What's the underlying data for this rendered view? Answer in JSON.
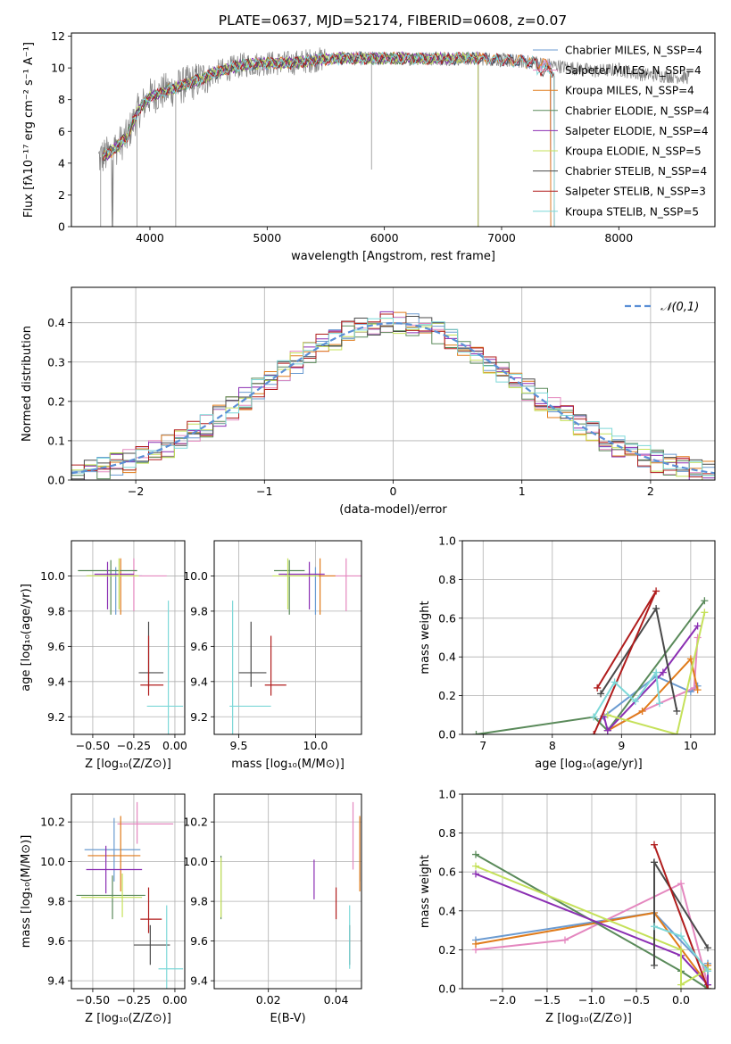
{
  "figure": {
    "title": "PLATE=0637, MJD=52174, FIBERID=0608, z=0.07",
    "colors": {
      "Chabrier MILES": "#6b9bd1",
      "Salpeter MILES": "#e487bf",
      "Kroupa MILES": "#e07b1a",
      "Chabrier ELODIE": "#5a8a5a",
      "Salpeter ELODIE": "#8b2fb3",
      "Kroupa ELODIE": "#c5e15a",
      "Chabrier STELIB": "#4a4a4a",
      "Salpeter STELIB": "#b01c1c",
      "Kroupa STELIB": "#7dd8d8",
      "data": "#808080"
    }
  },
  "chart_data": [
    {
      "type": "line",
      "xlabel": "wavelength [Angstrom, rest frame]",
      "ylabel": "Flux [fλ10⁻¹⁷ erg cm⁻² s⁻¹ A⁻¹]",
      "xlim": [
        3330,
        8820
      ],
      "ylim": [
        0,
        12.2
      ],
      "xticks": [
        4000,
        5000,
        6000,
        7000,
        8000
      ],
      "yticks": [
        0,
        2,
        4,
        6,
        8,
        10,
        12
      ],
      "legend_loc": "right",
      "legend": [
        {
          "label": "Chabrier MILES, N_SSP=4",
          "model": "Chabrier MILES"
        },
        {
          "label": "Salpeter MILES, N_SSP=4",
          "model": "Salpeter MILES"
        },
        {
          "label": "Kroupa MILES, N_SSP=4",
          "model": "Kroupa MILES"
        },
        {
          "label": "Chabrier ELODIE, N_SSP=4",
          "model": "Chabrier ELODIE"
        },
        {
          "label": "Salpeter ELODIE, N_SSP=4",
          "model": "Salpeter ELODIE"
        },
        {
          "label": "Kroupa ELODIE, N_SSP=5",
          "model": "Kroupa ELODIE"
        },
        {
          "label": "Chabrier STELIB, N_SSP=4",
          "model": "Chabrier STELIB"
        },
        {
          "label": "Salpeter STELIB, N_SSP=3",
          "model": "Salpeter STELIB"
        },
        {
          "label": "Kroupa STELIB, N_SSP=5",
          "model": "Kroupa STELIB"
        }
      ],
      "continuum": [
        [
          3560,
          4.3
        ],
        [
          3650,
          4.6
        ],
        [
          3800,
          5.6
        ],
        [
          3900,
          7.3
        ],
        [
          4000,
          8.2
        ],
        [
          4200,
          8.7
        ],
        [
          4400,
          9.2
        ],
        [
          4600,
          9.8
        ],
        [
          4800,
          10.2
        ],
        [
          5000,
          10.3
        ],
        [
          5200,
          10.3
        ],
        [
          5400,
          10.5
        ],
        [
          5600,
          10.6
        ],
        [
          5800,
          10.6
        ],
        [
          6000,
          10.6
        ],
        [
          6200,
          10.6
        ],
        [
          6400,
          10.6
        ],
        [
          6600,
          10.6
        ],
        [
          6800,
          10.6
        ],
        [
          7000,
          10.5
        ],
        [
          7200,
          10.4
        ],
        [
          7400,
          10.2
        ],
        [
          7600,
          10.0
        ],
        [
          7800,
          9.8
        ],
        [
          8000,
          9.9
        ],
        [
          8200,
          9.6
        ],
        [
          8400,
          9.5
        ],
        [
          8600,
          9.4
        ]
      ],
      "dips": [
        [
          3580,
          0
        ],
        [
          3890,
          0
        ],
        [
          4220,
          0
        ],
        [
          5890,
          3.6
        ],
        [
          6800,
          0
        ],
        [
          7420,
          0
        ]
      ],
      "model_ranges": {
        "STELIB": [
          3600,
          7450
        ],
        "MILES": [
          3600,
          7420
        ],
        "ELODIE": [
          3600,
          6800
        ]
      }
    },
    {
      "type": "step",
      "xlabel": "(data-model)/error",
      "ylabel": "Normed distribution",
      "xlim": [
        -2.5,
        2.5
      ],
      "ylim": [
        0,
        0.49
      ],
      "xticks": [
        -2,
        -1,
        0,
        1,
        2
      ],
      "yticks": [
        0,
        0.1,
        0.2,
        0.3,
        0.4
      ],
      "legend_loc": "top-right",
      "legend_label": "𝒩(0,1)",
      "bin_width": 0.1
    },
    {
      "type": "errorbar",
      "xlabel": "Z [log₁₀(Z/Z⊙)]",
      "ylabel": "age  [log₁₀(age/yr)]",
      "xlim": [
        -0.63,
        0.06
      ],
      "ylim": [
        9.1,
        10.2
      ],
      "xticks": [
        -0.5,
        -0.25,
        0.0
      ],
      "xticklabels": [
        "−0.50",
        "−0.25",
        "0.00"
      ],
      "yticks": [
        9.2,
        9.4,
        9.6,
        9.8,
        10.0
      ],
      "points": [
        {
          "model": "Chabrier MILES",
          "x": -0.36,
          "xerr": [
            0.18,
            0.16
          ],
          "y": 10.0,
          "yerr": [
            0.22,
            0.05
          ]
        },
        {
          "model": "Salpeter MILES",
          "x": -0.25,
          "xerr": [
            0.1,
            0.2
          ],
          "y": 10.0,
          "yerr": [
            0.2,
            0.1
          ]
        },
        {
          "model": "Kroupa MILES",
          "x": -0.33,
          "xerr": [
            0.2,
            0.1
          ],
          "y": 10.0,
          "yerr": [
            0.22,
            0.1
          ]
        },
        {
          "model": "Chabrier ELODIE",
          "x": -0.39,
          "xerr": [
            0.2,
            0.16
          ],
          "y": 10.03,
          "yerr": [
            0.25,
            0.06
          ]
        },
        {
          "model": "Salpeter ELODIE",
          "x": -0.41,
          "xerr": [
            0.08,
            0.16
          ],
          "y": 10.01,
          "yerr": [
            0.2,
            0.07
          ]
        },
        {
          "model": "Kroupa ELODIE",
          "x": -0.34,
          "xerr": [
            0.2,
            0.12
          ],
          "y": 10.0,
          "yerr": [
            0.19,
            0.1
          ]
        },
        {
          "model": "Chabrier STELIB",
          "x": -0.16,
          "xerr": [
            0.06,
            0.09
          ],
          "y": 9.45,
          "yerr": [
            0.08,
            0.29
          ]
        },
        {
          "model": "Salpeter STELIB",
          "x": -0.16,
          "xerr": [
            0.05,
            0.09
          ],
          "y": 9.38,
          "yerr": [
            0.06,
            0.28
          ]
        },
        {
          "model": "Kroupa STELIB",
          "x": -0.04,
          "xerr": [
            0.13,
            0.09
          ],
          "y": 9.26,
          "yerr": [
            0.17,
            0.6
          ]
        }
      ]
    },
    {
      "type": "errorbar",
      "xlabel": "mass [log₁₀(M/M⊙)]",
      "ylabel": "",
      "xlim": [
        9.34,
        10.3
      ],
      "ylim": [
        9.1,
        10.2
      ],
      "xticks": [
        9.5,
        10.0
      ],
      "xticklabels": [
        "9.5",
        "10.0"
      ],
      "yticks": [
        9.2,
        9.4,
        9.6,
        9.8,
        10.0
      ],
      "points": [
        {
          "model": "Chabrier MILES",
          "x": 10.0,
          "xerr": [
            0.2,
            0.05
          ],
          "y": 10.0,
          "yerr": [
            0.22,
            0.05
          ]
        },
        {
          "model": "Salpeter MILES",
          "x": 10.2,
          "xerr": [
            0.15,
            0.1
          ],
          "y": 10.0,
          "yerr": [
            0.2,
            0.1
          ]
        },
        {
          "model": "Kroupa MILES",
          "x": 10.03,
          "xerr": [
            0.2,
            0.1
          ],
          "y": 10.0,
          "yerr": [
            0.22,
            0.1
          ]
        },
        {
          "model": "Chabrier ELODIE",
          "x": 9.83,
          "xerr": [
            0.1,
            0.1
          ],
          "y": 10.03,
          "yerr": [
            0.25,
            0.06
          ]
        },
        {
          "model": "Salpeter ELODIE",
          "x": 9.96,
          "xerr": [
            0.2,
            0.1
          ],
          "y": 10.01,
          "yerr": [
            0.2,
            0.07
          ]
        },
        {
          "model": "Kroupa ELODIE",
          "x": 9.82,
          "xerr": [
            0.1,
            0.2
          ],
          "y": 10.0,
          "yerr": [
            0.19,
            0.1
          ]
        },
        {
          "model": "Chabrier STELIB",
          "x": 9.58,
          "xerr": [
            0.08,
            0.1
          ],
          "y": 9.45,
          "yerr": [
            0.08,
            0.29
          ]
        },
        {
          "model": "Salpeter STELIB",
          "x": 9.71,
          "xerr": [
            0.04,
            0.1
          ],
          "y": 9.38,
          "yerr": [
            0.06,
            0.28
          ]
        },
        {
          "model": "Kroupa STELIB",
          "x": 9.46,
          "xerr": [
            0.02,
            0.25
          ],
          "y": 9.26,
          "yerr": [
            0.17,
            0.6
          ]
        }
      ]
    },
    {
      "type": "line",
      "xlabel": "age  [log₁₀(age/yr)]",
      "ylabel": "mass weight",
      "xlim": [
        6.7,
        10.35
      ],
      "ylim": [
        0,
        1.0
      ],
      "xticks": [
        7,
        8,
        9,
        10
      ],
      "yticks": [
        0,
        0.2,
        0.4,
        0.6,
        0.8,
        1.0
      ],
      "series": [
        {
          "model": "Chabrier MILES",
          "x": [
            8.7,
            9.5,
            10.0,
            10.1
          ],
          "y": [
            0.08,
            0.3,
            0.22,
            0.25
          ]
        },
        {
          "model": "Salpeter MILES",
          "x": [
            8.8,
            9.3,
            10.05,
            10.1
          ],
          "y": [
            0.02,
            0.12,
            0.24,
            0.5
          ]
        },
        {
          "model": "Kroupa MILES",
          "x": [
            8.8,
            9.3,
            10.0,
            10.1
          ],
          "y": [
            0.02,
            0.12,
            0.39,
            0.23
          ]
        },
        {
          "model": "Chabrier ELODIE",
          "x": [
            6.9,
            8.6,
            8.8,
            10.2
          ],
          "y": [
            0.0,
            0.09,
            0.02,
            0.69
          ]
        },
        {
          "model": "Salpeter ELODIE",
          "x": [
            8.75,
            8.8,
            9.6,
            10.1
          ],
          "y": [
            0.09,
            0.02,
            0.32,
            0.56
          ]
        },
        {
          "model": "Kroupa ELODIE",
          "x": [
            8.8,
            9.8,
            10.2
          ],
          "y": [
            0.1,
            0.0,
            0.63
          ]
        },
        {
          "model": "Chabrier STELIB",
          "x": [
            8.7,
            9.5,
            9.8
          ],
          "y": [
            0.21,
            0.65,
            0.12
          ]
        },
        {
          "model": "Salpeter STELIB",
          "x": [
            8.6,
            9.5,
            8.65
          ],
          "y": [
            0.0,
            0.74,
            0.24
          ]
        },
        {
          "model": "Kroupa STELIB",
          "x": [
            8.6,
            8.9,
            9.2,
            9.5,
            9.55
          ],
          "y": [
            0.09,
            0.27,
            0.17,
            0.32,
            0.16
          ]
        }
      ]
    },
    {
      "type": "errorbar",
      "xlabel": "Z [log₁₀(Z/Z⊙)]",
      "ylabel": "mass [log₁₀(M/M⊙)]",
      "xlim": [
        -0.63,
        0.06
      ],
      "ylim": [
        9.36,
        10.34
      ],
      "xticks": [
        -0.5,
        -0.25,
        0.0
      ],
      "xticklabels": [
        "−0.50",
        "−0.25",
        "0.00"
      ],
      "yticks": [
        9.4,
        9.6,
        9.8,
        10.0,
        10.2
      ],
      "points": [
        {
          "model": "Chabrier MILES",
          "x": -0.37,
          "xerr": [
            0.18,
            0.16
          ],
          "y": 10.06,
          "yerr": [
            0.16,
            0.16
          ]
        },
        {
          "model": "Salpeter MILES",
          "x": -0.23,
          "xerr": [
            0.12,
            0.22
          ],
          "y": 10.19,
          "yerr": [
            0.1,
            0.11
          ]
        },
        {
          "model": "Kroupa MILES",
          "x": -0.33,
          "xerr": [
            0.2,
            0.12
          ],
          "y": 10.03,
          "yerr": [
            0.18,
            0.2
          ]
        },
        {
          "model": "Chabrier ELODIE",
          "x": -0.38,
          "xerr": [
            0.22,
            0.2
          ],
          "y": 9.83,
          "yerr": [
            0.12,
            0.1
          ]
        },
        {
          "model": "Salpeter ELODIE",
          "x": -0.42,
          "xerr": [
            0.12,
            0.22
          ],
          "y": 9.96,
          "yerr": [
            0.12,
            0.12
          ]
        },
        {
          "model": "Kroupa ELODIE",
          "x": -0.32,
          "xerr": [
            0.25,
            0.12
          ],
          "y": 9.82,
          "yerr": [
            0.1,
            0.12
          ]
        },
        {
          "model": "Chabrier STELIB",
          "x": -0.15,
          "xerr": [
            0.1,
            0.12
          ],
          "y": 9.58,
          "yerr": [
            0.1,
            0.1
          ]
        },
        {
          "model": "Salpeter STELIB",
          "x": -0.16,
          "xerr": [
            0.05,
            0.08
          ],
          "y": 9.71,
          "yerr": [
            0.07,
            0.16
          ]
        },
        {
          "model": "Kroupa STELIB",
          "x": -0.05,
          "xerr": [
            0.05,
            0.1
          ],
          "y": 9.46,
          "yerr": [
            0.1,
            0.32
          ]
        }
      ]
    },
    {
      "type": "errorbar",
      "xlabel": "E(B-V)",
      "ylabel": "",
      "xlim": [
        0.004,
        0.0475
      ],
      "ylim": [
        9.36,
        10.34
      ],
      "xticks": [
        0.02,
        0.04
      ],
      "xticklabels": [
        "0.02",
        "0.04"
      ],
      "yticks": [
        9.4,
        9.6,
        9.8,
        10.0,
        10.2
      ],
      "points": [
        {
          "model": "Chabrier MILES",
          "x": 0.047,
          "xerr": [
            0,
            0
          ],
          "y": 10.06,
          "yerr": [
            0.16,
            0.16
          ]
        },
        {
          "model": "Salpeter MILES",
          "x": 0.045,
          "xerr": [
            0,
            0
          ],
          "y": 10.19,
          "yerr": [
            0.23,
            0.11
          ]
        },
        {
          "model": "Kroupa MILES",
          "x": 0.047,
          "xerr": [
            0,
            0
          ],
          "y": 10.03,
          "yerr": [
            0.18,
            0.2
          ]
        },
        {
          "model": "Chabrier ELODIE",
          "x": 0.006,
          "xerr": [
            0,
            0
          ],
          "y": 9.83,
          "yerr": [
            0.12,
            0.2
          ]
        },
        {
          "model": "Salpeter ELODIE",
          "x": 0.0335,
          "xerr": [
            0,
            0
          ],
          "y": 9.96,
          "yerr": [
            0.15,
            0.05
          ]
        },
        {
          "model": "Kroupa ELODIE",
          "x": 0.006,
          "xerr": [
            0,
            0
          ],
          "y": 9.82,
          "yerr": [
            0.1,
            0.2
          ]
        },
        {
          "model": "Chabrier STELIB",
          "x": 0.044,
          "xerr": [
            0,
            0
          ],
          "y": 9.58,
          "yerr": [
            0.1,
            0.1
          ]
        },
        {
          "model": "Salpeter STELIB",
          "x": 0.04,
          "xerr": [
            0,
            0
          ],
          "y": 9.71,
          "yerr": [
            0.0,
            0.16
          ]
        },
        {
          "model": "Kroupa STELIB",
          "x": 0.044,
          "xerr": [
            0,
            0
          ],
          "y": 9.46,
          "yerr": [
            0.0,
            0.32
          ]
        }
      ]
    },
    {
      "type": "line",
      "xlabel": "Z [log₁₀(Z/Z⊙)]",
      "ylabel": "mass weight",
      "xlim": [
        -2.45,
        0.38
      ],
      "ylim": [
        0,
        1.0
      ],
      "xticks": [
        -2.0,
        -1.5,
        -1.0,
        -0.5,
        0.0
      ],
      "xticklabels": [
        "−2.0",
        "−1.5",
        "−1.0",
        "−0.5",
        "0.0"
      ],
      "yticks": [
        0,
        0.2,
        0.4,
        0.6,
        0.8,
        1.0
      ],
      "series": [
        {
          "model": "Chabrier MILES",
          "x": [
            -2.3,
            -0.3,
            0.3,
            0.3
          ],
          "y": [
            0.25,
            0.39,
            0.1,
            0.13
          ]
        },
        {
          "model": "Salpeter MILES",
          "x": [
            -2.3,
            -1.3,
            0.0,
            0.3
          ],
          "y": [
            0.2,
            0.25,
            0.54,
            0.02
          ]
        },
        {
          "model": "Kroupa MILES",
          "x": [
            -2.3,
            -0.3,
            0.3,
            0.3
          ],
          "y": [
            0.23,
            0.39,
            0.02,
            0.12
          ]
        },
        {
          "model": "Chabrier ELODIE",
          "x": [
            -2.3,
            0.0,
            0.3,
            0.3
          ],
          "y": [
            0.69,
            0.09,
            0.0,
            0.02
          ]
        },
        {
          "model": "Salpeter ELODIE",
          "x": [
            -2.3,
            0.0,
            0.3,
            0.3
          ],
          "y": [
            0.59,
            0.17,
            0.02,
            0.09
          ]
        },
        {
          "model": "Kroupa ELODIE",
          "x": [
            -2.3,
            0.0,
            0.0,
            0.3
          ],
          "y": [
            0.63,
            0.2,
            0.02,
            0.1
          ]
        },
        {
          "model": "Chabrier STELIB",
          "x": [
            -0.3,
            -0.3,
            0.3
          ],
          "y": [
            0.12,
            0.65,
            0.21
          ]
        },
        {
          "model": "Salpeter STELIB",
          "x": [
            -0.3,
            0.3
          ],
          "y": [
            0.74,
            0.0
          ]
        },
        {
          "model": "Kroupa STELIB",
          "x": [
            -0.3,
            0.0,
            0.3,
            0.3
          ],
          "y": [
            0.32,
            0.27,
            0.09,
            0.09
          ]
        }
      ]
    }
  ]
}
